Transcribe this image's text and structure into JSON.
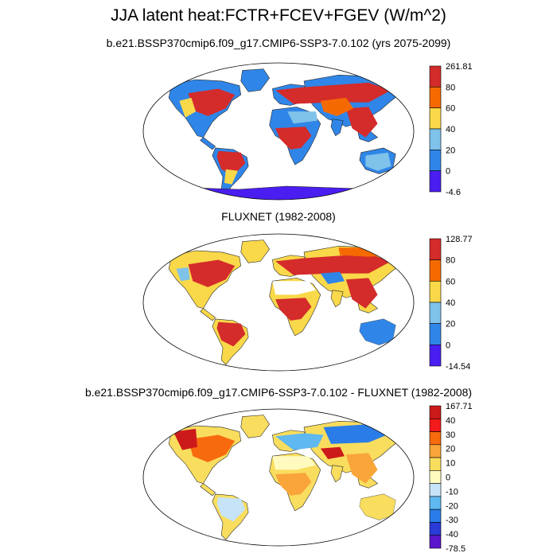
{
  "title": "JJA latent heat:FCTR+FCEV+FGEV (W/m^2)",
  "panels": [
    {
      "id": "model",
      "subtitle": "b.e21.BSSP370cmip6.f09_g17.CMIP6-SSP3-7.0.102 (yrs 2075-2099)",
      "colorbar_labels": [
        "261.81",
        "80",
        "60",
        "40",
        "20",
        "0",
        "-4.6"
      ],
      "colorbar_colors": [
        "#d42b2b",
        "#f56a00",
        "#f9d84a",
        "#7fc2ea",
        "#2f86e8",
        "#4a1ef0"
      ]
    },
    {
      "id": "fluxnet",
      "subtitle": "FLUXNET (1982-2008)",
      "colorbar_labels": [
        "128.77",
        "80",
        "60",
        "40",
        "20",
        "0",
        "-14.54"
      ],
      "colorbar_colors": [
        "#d42b2b",
        "#f56a00",
        "#f9d84a",
        "#7fc2ea",
        "#2f86e8",
        "#4a1ef0"
      ]
    },
    {
      "id": "difference",
      "subtitle": "b.e21.BSSP370cmip6.f09_g17.CMIP6-SSP3-7.0.102 - FLUXNET (1982-2008)",
      "colorbar_labels": [
        "167.71",
        "40",
        "30",
        "20",
        "10",
        "0",
        "-10",
        "-20",
        "-30",
        "-40",
        "-78.5"
      ],
      "colorbar_colors": [
        "#cc1a1a",
        "#f21a1a",
        "#f76a0e",
        "#f9a53a",
        "#f9dd5e",
        "#fffbbf",
        "#c6e3f7",
        "#5fb8f0",
        "#2a7de8",
        "#2a3bd8",
        "#5b16cc"
      ]
    }
  ]
}
